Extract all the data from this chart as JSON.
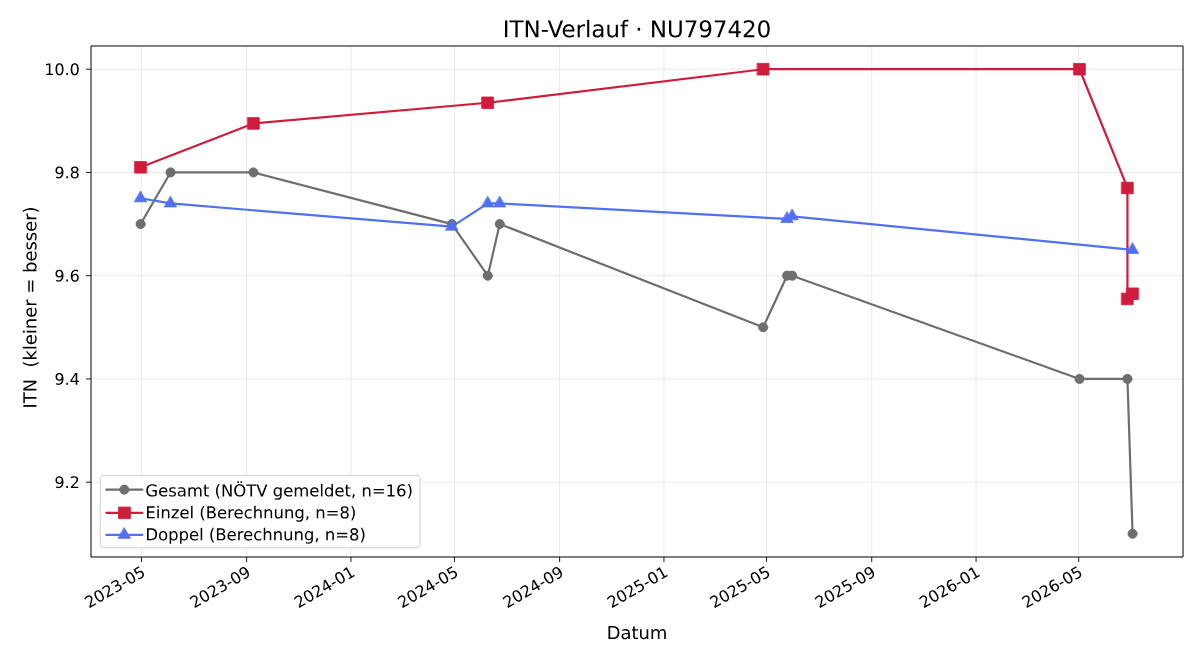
{
  "chart_data": {
    "type": "line",
    "title": "ITN-Verlauf · NU797420",
    "xlabel": "Datum",
    "ylabel": "ITN  (kleiner = besser)",
    "series": [
      {
        "name": "Gesamt (NÖTV gemeldet, n=16)",
        "color": "#6e6e6e",
        "marker": "circle",
        "x": [
          "2023-04-30",
          "2023-06-04",
          "2023-09-09",
          "2024-04-28",
          "2024-06-09",
          "2024-06-23",
          "2025-04-27",
          "2025-05-25",
          "2025-05-31",
          "2026-05-02",
          "2026-06-27",
          "2026-07-03"
        ],
        "values": [
          9.7,
          9.8,
          9.8,
          9.7,
          9.6,
          9.7,
          9.5,
          9.6,
          9.6,
          9.4,
          9.4,
          9.1
        ]
      },
      {
        "name": "Einzel (Berechnung, n=8)",
        "color": "#d01c3c",
        "marker": "square",
        "x": [
          "2023-04-30",
          "2023-09-09",
          "2024-06-09",
          "2025-04-27",
          "2026-05-02",
          "2026-06-27",
          "2026-06-27",
          "2026-07-03"
        ],
        "values": [
          9.81,
          9.895,
          9.935,
          10.0,
          10.0,
          9.77,
          9.555,
          9.565
        ]
      },
      {
        "name": "Doppel (Berechnung, n=8)",
        "color": "#5271f0",
        "marker": "triangle",
        "x": [
          "2023-04-30",
          "2023-06-04",
          "2024-04-28",
          "2024-06-09",
          "2024-06-23",
          "2025-05-25",
          "2025-05-31",
          "2026-07-03"
        ],
        "values": [
          9.75,
          9.74,
          9.695,
          9.74,
          9.74,
          9.71,
          9.715,
          9.65
        ]
      }
    ],
    "xlim": [
      "2023-03-03",
      "2026-08-31"
    ],
    "xticks": [
      "2023-05",
      "2023-09",
      "2024-01",
      "2024-05",
      "2024-09",
      "2025-01",
      "2025-05",
      "2025-09",
      "2026-01",
      "2026-05"
    ],
    "ylim": [
      9.055,
      10.045
    ],
    "yticks": [
      9.2,
      9.4,
      9.6,
      9.8,
      {
        "value": 10.0,
        "label": "10.0"
      }
    ],
    "grid": true,
    "legend": "bottom left",
    "line_style": "solid"
  }
}
